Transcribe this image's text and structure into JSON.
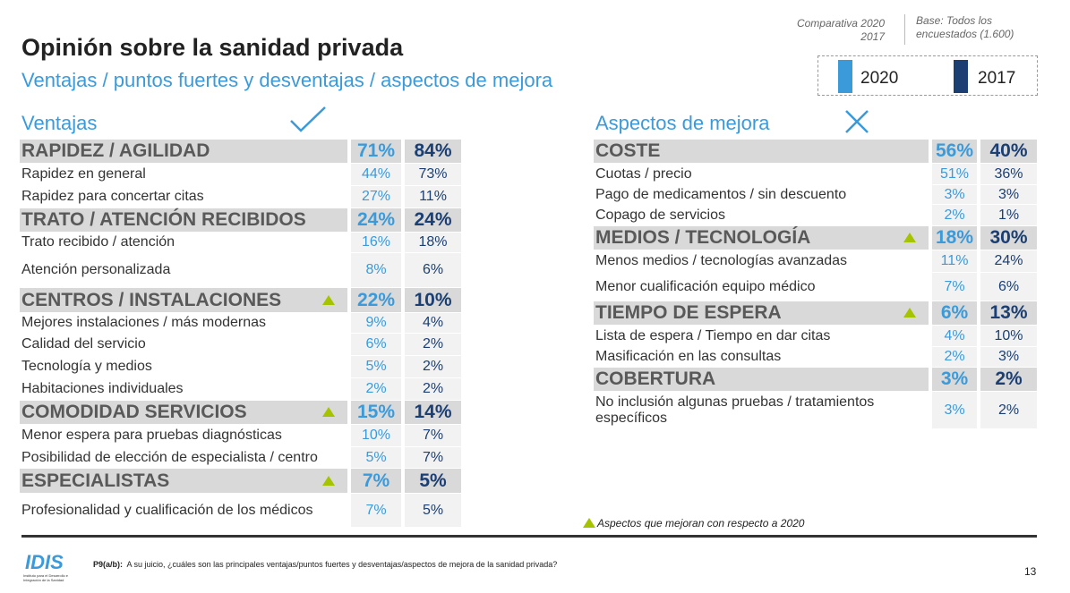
{
  "header": {
    "title": "Opinión sobre la sanidad privada",
    "subtitle": "Ventajas / puntos fuertes y desventajas / aspectos de mejora",
    "comparison": [
      "Comparativa 2020",
      "2017"
    ],
    "base": [
      "Base: Todos los",
      "encuestados (1.600)"
    ]
  },
  "legend": [
    "2020",
    "2017"
  ],
  "tables": [
    {
      "heading": "Ventajas",
      "groups": [
        {
          "label": "RAPIDEZ / AGILIDAD",
          "v2020": "71%",
          "v2017": "84%",
          "improved": false,
          "items": [
            {
              "label": "Rapidez en general",
              "v2020": "44%",
              "v2017": "73%"
            },
            {
              "label": "Rapidez para concertar citas",
              "v2020": "27%",
              "v2017": "11%"
            }
          ]
        },
        {
          "label": "TRATO / ATENCIÓN RECIBIDOS",
          "v2020": "24%",
          "v2017": "24%",
          "improved": false,
          "items": [
            {
              "label": "Trato recibido / atención",
              "v2020": "16%",
              "v2017": "18%"
            },
            {
              "label": "Atención personalizada",
              "v2020": "8%",
              "v2017": "6%"
            }
          ]
        },
        {
          "label": "CENTROS / INSTALACIONES",
          "v2020": "22%",
          "v2017": "10%",
          "improved": true,
          "items": [
            {
              "label": "Mejores instalaciones / más modernas",
              "v2020": "9%",
              "v2017": "4%"
            },
            {
              "label": "Calidad del servicio",
              "v2020": "6%",
              "v2017": "2%"
            },
            {
              "label": "Tecnología y medios",
              "v2020": "5%",
              "v2017": "2%"
            },
            {
              "label": "Habitaciones individuales",
              "v2020": "2%",
              "v2017": "2%"
            }
          ]
        },
        {
          "label": "COMODIDAD SERVICIOS",
          "v2020": "15%",
          "v2017": "14%",
          "improved": true,
          "items": [
            {
              "label": "Menor espera para pruebas diagnósticas",
              "v2020": "10%",
              "v2017": "7%"
            },
            {
              "label": "Posibilidad de elección de especialista / centro",
              "v2020": "5%",
              "v2017": "7%"
            }
          ]
        },
        {
          "label": "ESPECIALISTAS",
          "v2020": "7%",
          "v2017": "5%",
          "improved": true,
          "items": [
            {
              "label": "Profesionalidad y cualificación de los médicos",
              "v2020": "7%",
              "v2017": "5%"
            }
          ]
        }
      ]
    },
    {
      "heading": "Aspectos de mejora",
      "groups": [
        {
          "label": "COSTE",
          "v2020": "56%",
          "v2017": "40%",
          "improved": false,
          "items": [
            {
              "label": "Cuotas / precio",
              "v2020": "51%",
              "v2017": "36%"
            },
            {
              "label": "Pago de medicamentos / sin descuento",
              "v2020": "3%",
              "v2017": "3%"
            },
            {
              "label": "Copago de servicios",
              "v2020": "2%",
              "v2017": "1%"
            }
          ]
        },
        {
          "label": "MEDIOS / TECNOLOGÍA",
          "v2020": "18%",
          "v2017": "30%",
          "improved": true,
          "items": [
            {
              "label": "Menos medios / tecnologías avanzadas",
              "v2020": "11%",
              "v2017": "24%"
            },
            {
              "label": "Menor cualificación equipo médico",
              "v2020": "7%",
              "v2017": "6%"
            }
          ]
        },
        {
          "label": "TIEMPO DE ESPERA",
          "v2020": "6%",
          "v2017": "13%",
          "improved": true,
          "items": [
            {
              "label": "Lista de espera / Tiempo en dar citas",
              "v2020": "4%",
              "v2017": "10%"
            },
            {
              "label": "Masificación en las consultas",
              "v2020": "2%",
              "v2017": "3%"
            }
          ]
        },
        {
          "label": "COBERTURA",
          "v2020": "3%",
          "v2017": "2%",
          "improved": false,
          "items": [
            {
              "label": "No inclusión algunas pruebas / tratamientos específicos",
              "v2020": "3%",
              "v2017": "2%"
            }
          ]
        }
      ]
    }
  ],
  "footnote": "Aspectos que mejoran con respecto a 2020",
  "question": {
    "code": "P9(a/b):",
    "text": "A su juicio, ¿cuáles son las principales ventajas/puntos fuertes y desventajas/aspectos de mejora de la sanidad privada?"
  },
  "logo": {
    "name": "IDIS",
    "caption": "Instituto para el Desarrollo e Integración de la Sanidad"
  },
  "page_number": "13"
}
